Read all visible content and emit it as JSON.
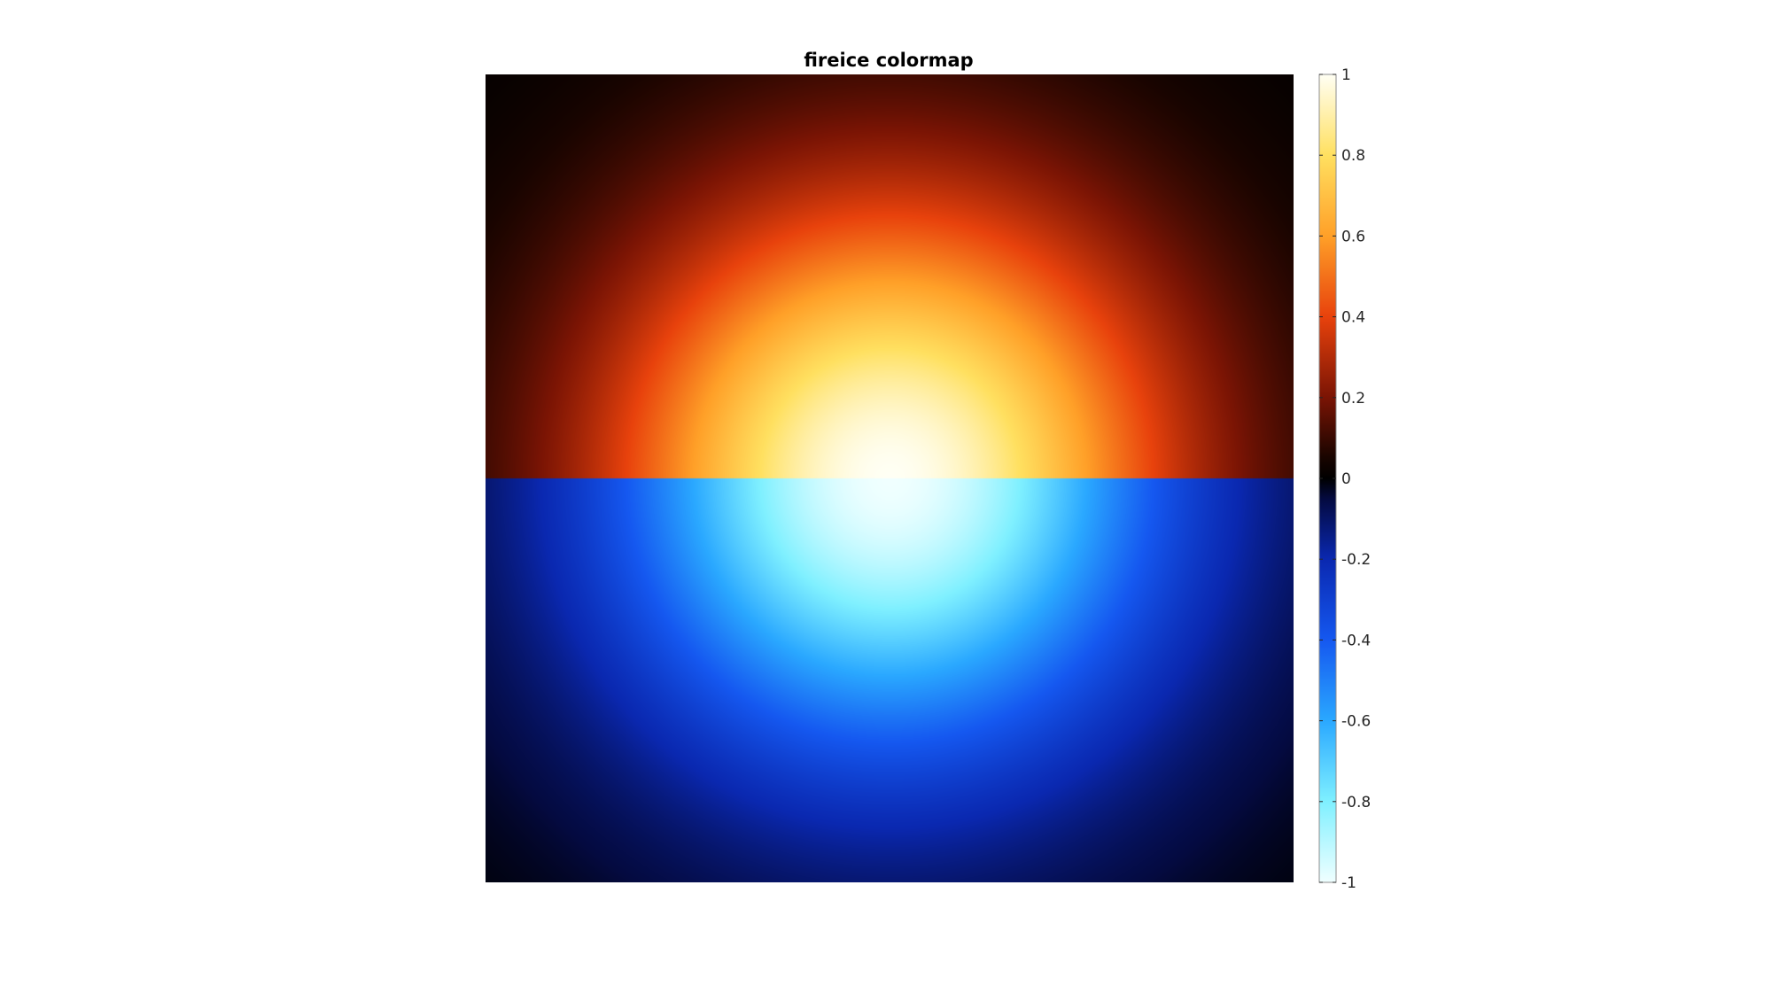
{
  "chart_data": {
    "type": "heatmap",
    "title": "fireice colormap",
    "colormap": "fireice",
    "clim": [
      -1,
      1
    ],
    "colorbar": {
      "location": "right",
      "ticks": [
        1,
        0.8,
        0.6,
        0.4,
        0.2,
        0,
        -0.2,
        -0.4,
        -0.6,
        -0.8,
        -1
      ],
      "tick_labels": [
        "1",
        "0.8",
        "0.6",
        "0.4",
        "0.2",
        "0",
        "-0.2",
        "-0.4",
        "-0.6",
        "-0.8",
        "-1"
      ]
    },
    "field": {
      "description_of_values": "radial falloff from centre; positive in upper half, negative in lower half",
      "max": 1,
      "min": -1
    },
    "colormap_stops": [
      {
        "value": -1.0,
        "color": "#f0ffff"
      },
      {
        "value": -0.8,
        "color": "#7ff0ff"
      },
      {
        "value": -0.6,
        "color": "#2aa8ff"
      },
      {
        "value": -0.4,
        "color": "#1558f0"
      },
      {
        "value": -0.2,
        "color": "#0a28b0"
      },
      {
        "value": -0.05,
        "color": "#040a40"
      },
      {
        "value": 0.0,
        "color": "#000000"
      },
      {
        "value": 0.05,
        "color": "#180400"
      },
      {
        "value": 0.2,
        "color": "#7a1404"
      },
      {
        "value": 0.4,
        "color": "#e8420c"
      },
      {
        "value": 0.6,
        "color": "#ffa028"
      },
      {
        "value": 0.8,
        "color": "#ffe060"
      },
      {
        "value": 1.0,
        "color": "#fffff4"
      }
    ],
    "axes_visible": false
  }
}
